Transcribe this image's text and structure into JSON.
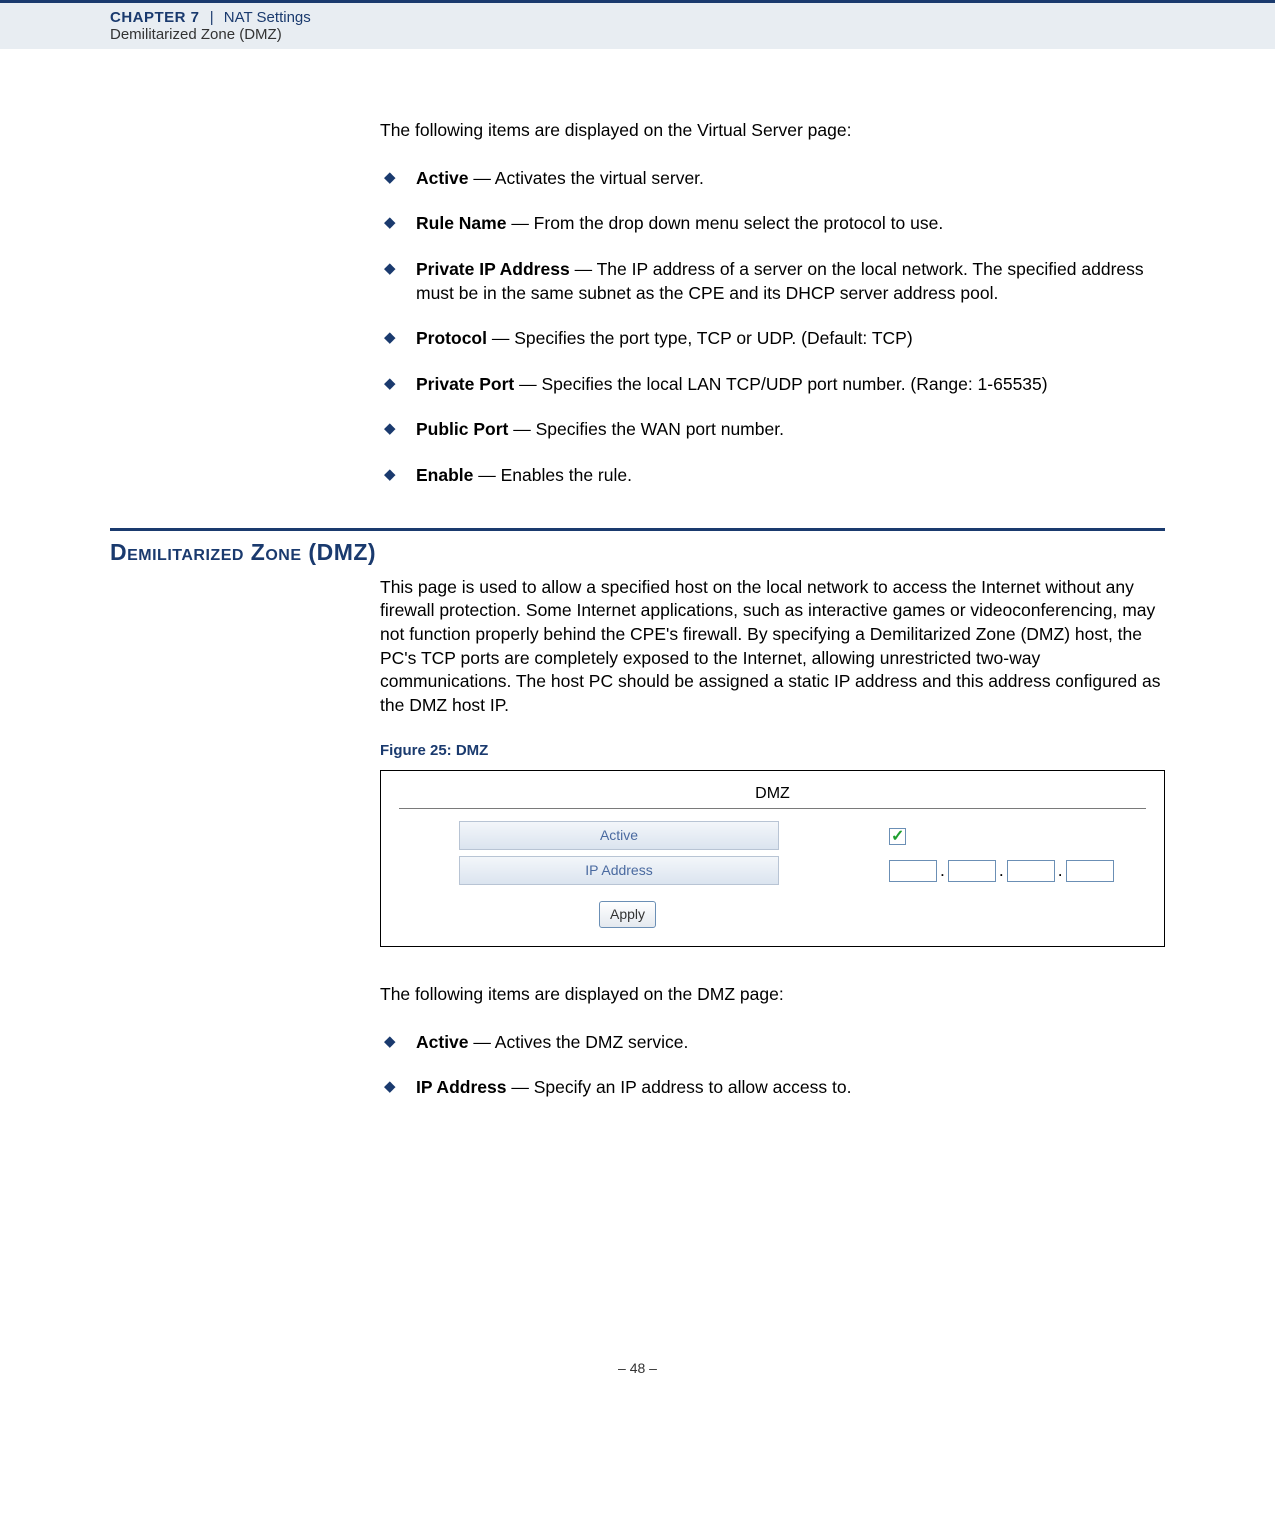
{
  "header": {
    "chapter_label": "CHAPTER 7",
    "separator": "|",
    "chapter_title": "NAT Settings",
    "subchapter": "Demilitarized Zone (DMZ)"
  },
  "intro1": "The following items are displayed on the Virtual Server page:",
  "list1": [
    {
      "term": "Active",
      "desc": " — Activates the virtual server."
    },
    {
      "term": "Rule Name",
      "desc": " — From the drop down menu select the protocol to use."
    },
    {
      "term": "Private IP Address",
      "desc": " — The IP address of a server on the local network. The specified address must be in the same subnet as the CPE and its DHCP server address pool."
    },
    {
      "term": "Protocol",
      "desc": " — Specifies the port type, TCP or UDP. (Default: TCP)"
    },
    {
      "term": "Private Port",
      "desc": " — Specifies the local LAN TCP/UDP port number. (Range: 1-65535)"
    },
    {
      "term": "Public Port",
      "desc": " — Specifies the WAN port number."
    },
    {
      "term": "Enable",
      "desc": " — Enables the rule."
    }
  ],
  "section_heading_a": "Demilitarized Zone",
  "section_heading_b": " (DMZ)",
  "dmz_para": "This page is used to allow a specified host on the local network to access the Internet without any firewall protection. Some Internet applications, such as interactive games or videoconferencing, may not function properly behind the CPE's firewall. By specifying a Demilitarized Zone (DMZ) host, the PC's TCP ports are completely exposed to the Internet, allowing unrestricted two-way communications. The host PC should be assigned a static IP address and this address configured as the DMZ host IP.",
  "figure": {
    "caption": "Figure 25:  DMZ",
    "panel_title": "DMZ",
    "row_active_label": "Active",
    "row_ip_label": "IP Address",
    "apply_label": "Apply"
  },
  "intro2": "The following items are displayed on the DMZ page:",
  "list2": [
    {
      "term": "Active",
      "desc": " — Actives the DMZ service."
    },
    {
      "term": "IP Address",
      "desc": " — Specify an IP address to allow access to."
    }
  ],
  "footer": "–  48  –",
  "colors": {
    "brand": "#1a3a6e",
    "header_bg": "#e8edf2",
    "label_text": "#4a6aa0",
    "check_green": "#1e9e2e"
  }
}
